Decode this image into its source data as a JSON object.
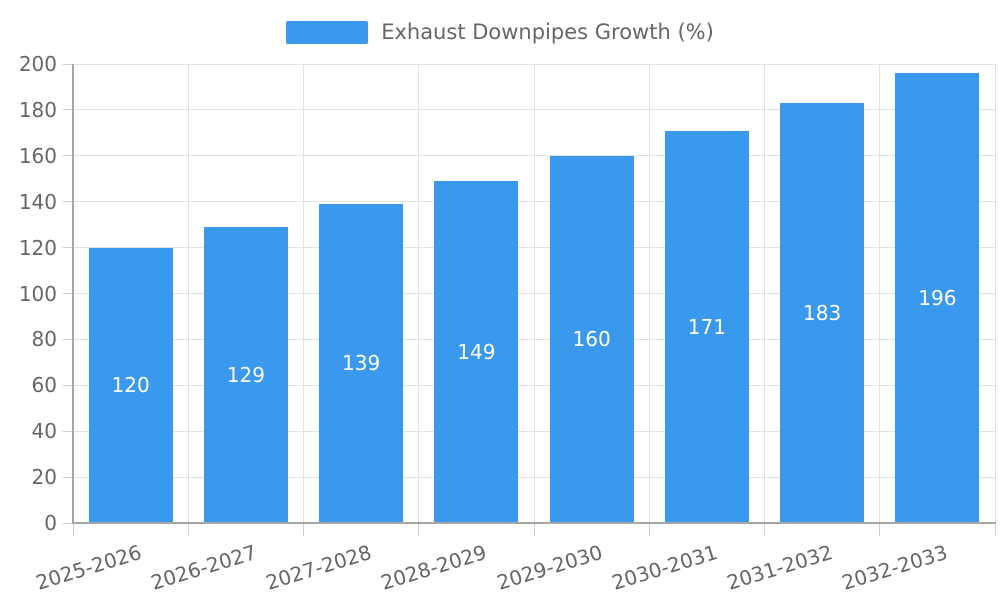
{
  "chart_data": {
    "type": "bar",
    "title": "",
    "legend": [
      "Exhaust Downpipes Growth (%)"
    ],
    "legend_position": "top-center",
    "categories": [
      "2025-2026",
      "2026-2027",
      "2027-2028",
      "2028-2029",
      "2029-2030",
      "2030-2031",
      "2031-2032",
      "2032-2033"
    ],
    "series": [
      {
        "name": "Exhaust Downpipes Growth (%)",
        "values": [
          120,
          129,
          139,
          149,
          160,
          171,
          183,
          196
        ]
      }
    ],
    "xlabel": "",
    "ylabel": "",
    "ylim": [
      0,
      200
    ],
    "yticks": [
      0,
      20,
      40,
      60,
      80,
      100,
      120,
      140,
      160,
      180,
      200
    ],
    "grid": true,
    "value_labels": "inside-center",
    "x_label_rotation_deg": -17
  },
  "style": {
    "bar_color": "#3A99EC",
    "grid_color": "#E2E2E2",
    "axis_color": "#A6A6A6",
    "tick_color": "#CFCFCF",
    "label_color": "#666666",
    "legend_text_color": "#666666",
    "value_label_color": "#FFFFFF",
    "background": "#FFFFFF"
  }
}
